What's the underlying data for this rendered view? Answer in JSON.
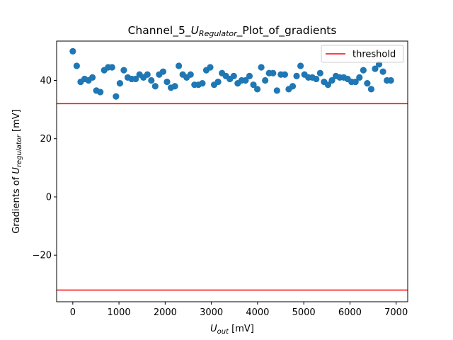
{
  "chart_data": {
    "type": "scatter",
    "title": {
      "prefix": "Channel_5_",
      "var_main": "U",
      "var_sub": "Regulator",
      "suffix": "_Plot_of_gradients"
    },
    "xlabel": {
      "main": "U",
      "sub": "out",
      "unit": " [mV]"
    },
    "ylabel": {
      "prefix": "Gradients of ",
      "main": "U",
      "sub": "regulator",
      "unit": " [mV]"
    },
    "xlim": [
      -350,
      7250
    ],
    "ylim": [
      -36,
      53.5
    ],
    "xticks": [
      0,
      1000,
      2000,
      3000,
      4000,
      5000,
      6000,
      7000
    ],
    "yticks": [
      -20,
      0,
      20,
      40
    ],
    "xtick_labels": [
      "0",
      "1000",
      "2000",
      "3000",
      "4000",
      "5000",
      "6000",
      "7000"
    ],
    "ytick_labels": [
      "−20",
      "0",
      "20",
      "40"
    ],
    "point_color": "#1f77b4",
    "threshold_color": "#ff0000",
    "threshold_values": [
      32,
      -32
    ],
    "legend": {
      "placement": "top-right",
      "label": "threshold"
    },
    "grid": false,
    "series": [
      {
        "x": [
          0,
          85,
          170,
          255,
          340,
          425,
          510,
          595,
          680,
          765,
          850,
          935,
          1020,
          1105,
          1190,
          1275,
          1360,
          1445,
          1530,
          1615,
          1700,
          1785,
          1870,
          1955,
          2040,
          2125,
          2210,
          2295,
          2380,
          2465,
          2550,
          2635,
          2720,
          2805,
          2890,
          2975,
          3060,
          3145,
          3230,
          3315,
          3400,
          3485,
          3570,
          3655,
          3740,
          3825,
          3910,
          3995,
          4080,
          4165,
          4250,
          4335,
          4420,
          4505,
          4590,
          4675,
          4760,
          4845,
          4930,
          5015,
          5100,
          5185,
          5270,
          5355,
          5440,
          5525,
          5610,
          5695,
          5780,
          5865,
          5950,
          6035,
          6120,
          6205,
          6290,
          6375,
          6460,
          6545,
          6630,
          6715,
          6800,
          6885
        ],
        "y": [
          50.0,
          45.0,
          39.5,
          40.5,
          40.0,
          41.0,
          36.5,
          36.0,
          43.5,
          44.5,
          44.5,
          34.5,
          39.0,
          43.5,
          41.0,
          40.5,
          40.5,
          42.0,
          41.0,
          42.0,
          40.0,
          38.0,
          42.0,
          43.0,
          39.5,
          37.5,
          38.0,
          45.0,
          42.0,
          41.0,
          42.0,
          38.5,
          38.5,
          39.0,
          43.5,
          44.5,
          38.5,
          39.5,
          42.5,
          41.5,
          40.5,
          41.5,
          39.0,
          40.0,
          40.0,
          41.5,
          38.5,
          37.0,
          44.5,
          40.0,
          42.5,
          42.5,
          36.5,
          42.0,
          42.0,
          37.0,
          38.0,
          41.5,
          45.0,
          42.0,
          41.0,
          41.0,
          40.5,
          42.5,
          39.5,
          38.5,
          40.0,
          41.5,
          41.0,
          41.0,
          40.5,
          39.5,
          39.5,
          41.0,
          43.5,
          39.0,
          37.0,
          44.0,
          45.5,
          43.0,
          40.0,
          40.0
        ]
      }
    ]
  }
}
